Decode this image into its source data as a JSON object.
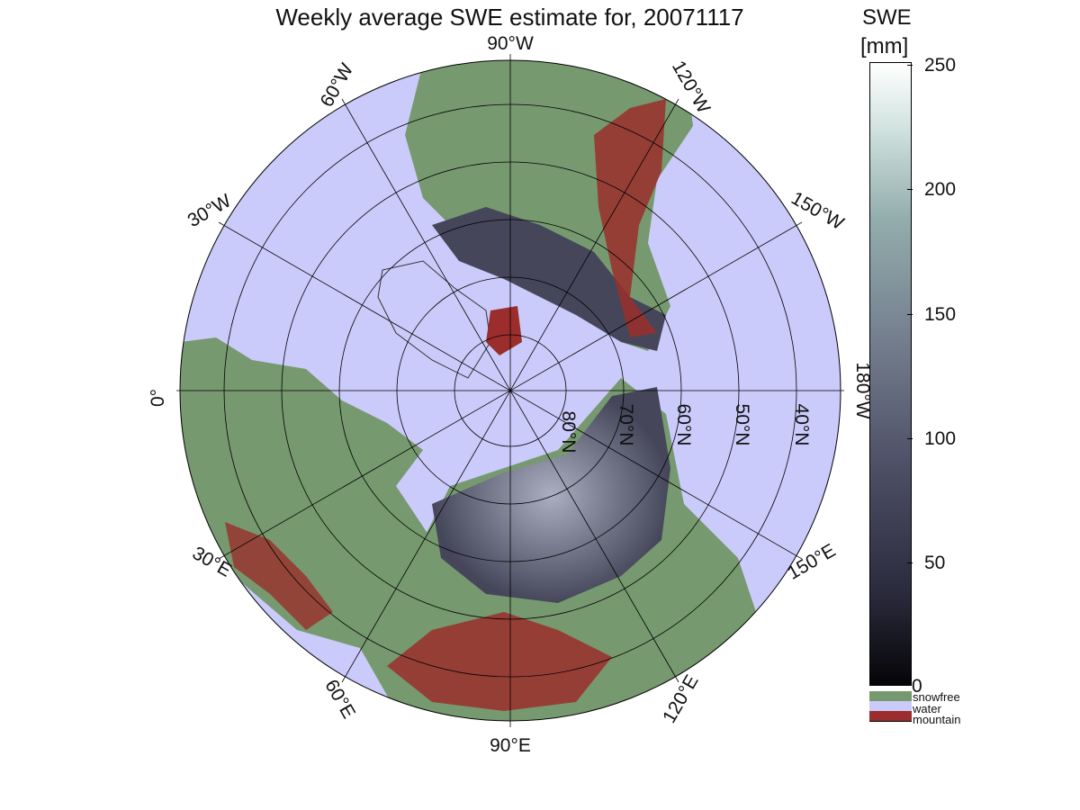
{
  "title": "Weekly average SWE estimate for, 20071117",
  "colorbar": {
    "label_line1": "SWE",
    "label_line2": "[mm]",
    "ticks": [
      "250",
      "200",
      "150",
      "100",
      "50",
      "0"
    ],
    "range": [
      0,
      250
    ]
  },
  "legend": [
    {
      "label": "snowfree",
      "color": "#76996f"
    },
    {
      "label": "water",
      "color": "#cbcbfb"
    },
    {
      "label": "mountain",
      "color": "#9b2e2c"
    }
  ],
  "map": {
    "projection": "north polar stereographic",
    "ocean_color": "#cbcbfb",
    "land_color": "#76996f",
    "mountain_color": "#9b2e2c",
    "snow_color": "#45465a",
    "longitude_labels": {
      "lon_90W": "90°W",
      "lon_60W": "60°W",
      "lon_120W": "120°W",
      "lon_30W": "30°W",
      "lon_150W": "150°W",
      "lon_0": "0°",
      "lon_180W": "180°W",
      "lon_30E": "30°E",
      "lon_150E": "150°E",
      "lon_60E": "60°E",
      "lon_120E": "120°E",
      "lon_90E": "90°E"
    },
    "latitude_labels": {
      "lat_80N": "80°N",
      "lat_70N": "70°N",
      "lat_60N": "60°N",
      "lat_50N": "50°N",
      "lat_40N": "40°N"
    }
  }
}
